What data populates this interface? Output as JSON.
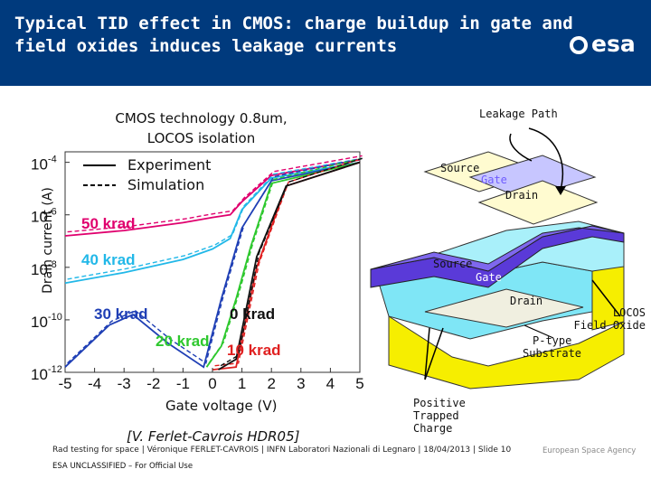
{
  "header": {
    "title": "Typical TID effect in CMOS: charge buildup in gate and field oxides induces leakage currents",
    "logo_text": "esa"
  },
  "left_panel": {
    "caption": "CMOS technology 0.8um, LOCOS isolation",
    "ylabel": "Drain current (A)",
    "xlabel": "Gate voltage (V)",
    "reference": "[V. Ferlet-Cavrois HDR05]"
  },
  "chart_data": {
    "type": "line",
    "xlim": [
      -5,
      5
    ],
    "ylim_log10": [
      -12,
      -3.6
    ],
    "x_ticks": [
      "-5",
      "-4",
      "-3",
      "-2",
      "-1",
      "0",
      "1",
      "2",
      "3",
      "4",
      "5"
    ],
    "y_ticks": [
      {
        "base": "10",
        "exp": "-4"
      },
      {
        "base": "10",
        "exp": "-6"
      },
      {
        "base": "10",
        "exp": "-8"
      },
      {
        "base": "10",
        "exp": "-10"
      },
      {
        "base": "10",
        "exp": "-12"
      }
    ],
    "legend": [
      {
        "label": "Experiment",
        "style": "solid"
      },
      {
        "label": "Simulation",
        "style": "dashed"
      }
    ],
    "series": [
      {
        "label": "50 krad",
        "color": "#e0006e",
        "x": [
          -5,
          -3,
          -1,
          0,
          0.6,
          1,
          2,
          5
        ],
        "log10_y": [
          -6.8,
          -6.6,
          -6.3,
          -6.1,
          -6.0,
          -5.5,
          -4.5,
          -3.9
        ]
      },
      {
        "label": "40 krad",
        "color": "#22b8e8",
        "x": [
          -5,
          -3,
          -1,
          0,
          0.6,
          1,
          2,
          5
        ],
        "log10_y": [
          -8.6,
          -8.2,
          -7.7,
          -7.3,
          -6.9,
          -5.8,
          -4.6,
          -4.0
        ]
      },
      {
        "label": "30 krad",
        "color": "#1f3fb5",
        "x": [
          -5,
          -3.5,
          -2.7,
          -1.5,
          -0.3,
          0.3,
          1,
          2,
          5
        ],
        "log10_y": [
          -11.8,
          -10.2,
          -9.8,
          -10.9,
          -11.8,
          -9.2,
          -6.5,
          -4.7,
          -4.0
        ]
      },
      {
        "label": "20 krad",
        "color": "#2ec82e",
        "x": [
          -0.2,
          0.3,
          0.8,
          1.3,
          2,
          5
        ],
        "log10_y": [
          -11.8,
          -11.0,
          -9.2,
          -7.2,
          -4.8,
          -4.0
        ]
      },
      {
        "label": "10 krad",
        "color": "#e02020",
        "x": [
          0,
          0.8,
          1.5,
          2.5,
          5
        ],
        "log10_y": [
          -11.9,
          -11.8,
          -8.0,
          -4.9,
          -4.0
        ]
      },
      {
        "label": "0 krad",
        "color": "#111111",
        "x": [
          0.2,
          0.8,
          1.5,
          2.5,
          5
        ],
        "log10_y": [
          -11.9,
          -11.5,
          -7.6,
          -4.9,
          -4.0
        ]
      }
    ]
  },
  "diagram": {
    "leakage_path": "Leakage Path",
    "top_source": "Source",
    "top_gate": "Gate",
    "top_drain": "Drain",
    "mid_source": "Source",
    "mid_gate": "Gate",
    "mid_drain": "Drain",
    "locos": "LOCOS Field Oxide",
    "ptype": "P-type Substrate",
    "positive": "Positive Trapped Charge"
  },
  "footer": {
    "line1": "Rad testing for space | Véronique FERLET-CAVROIS | INFN Laboratori Nazionali di Legnaro | 18/04/2013 | Slide 10",
    "line2": "ESA UNCLASSIFIED – For Official Use",
    "esa_name": "European Space Agency"
  },
  "colors": {
    "header_bg": "#003a7d",
    "silicon_yellow": "#f6ee00",
    "oxide_cyan": "#7fe6f6",
    "gate_purple": "#5a3ad8"
  }
}
